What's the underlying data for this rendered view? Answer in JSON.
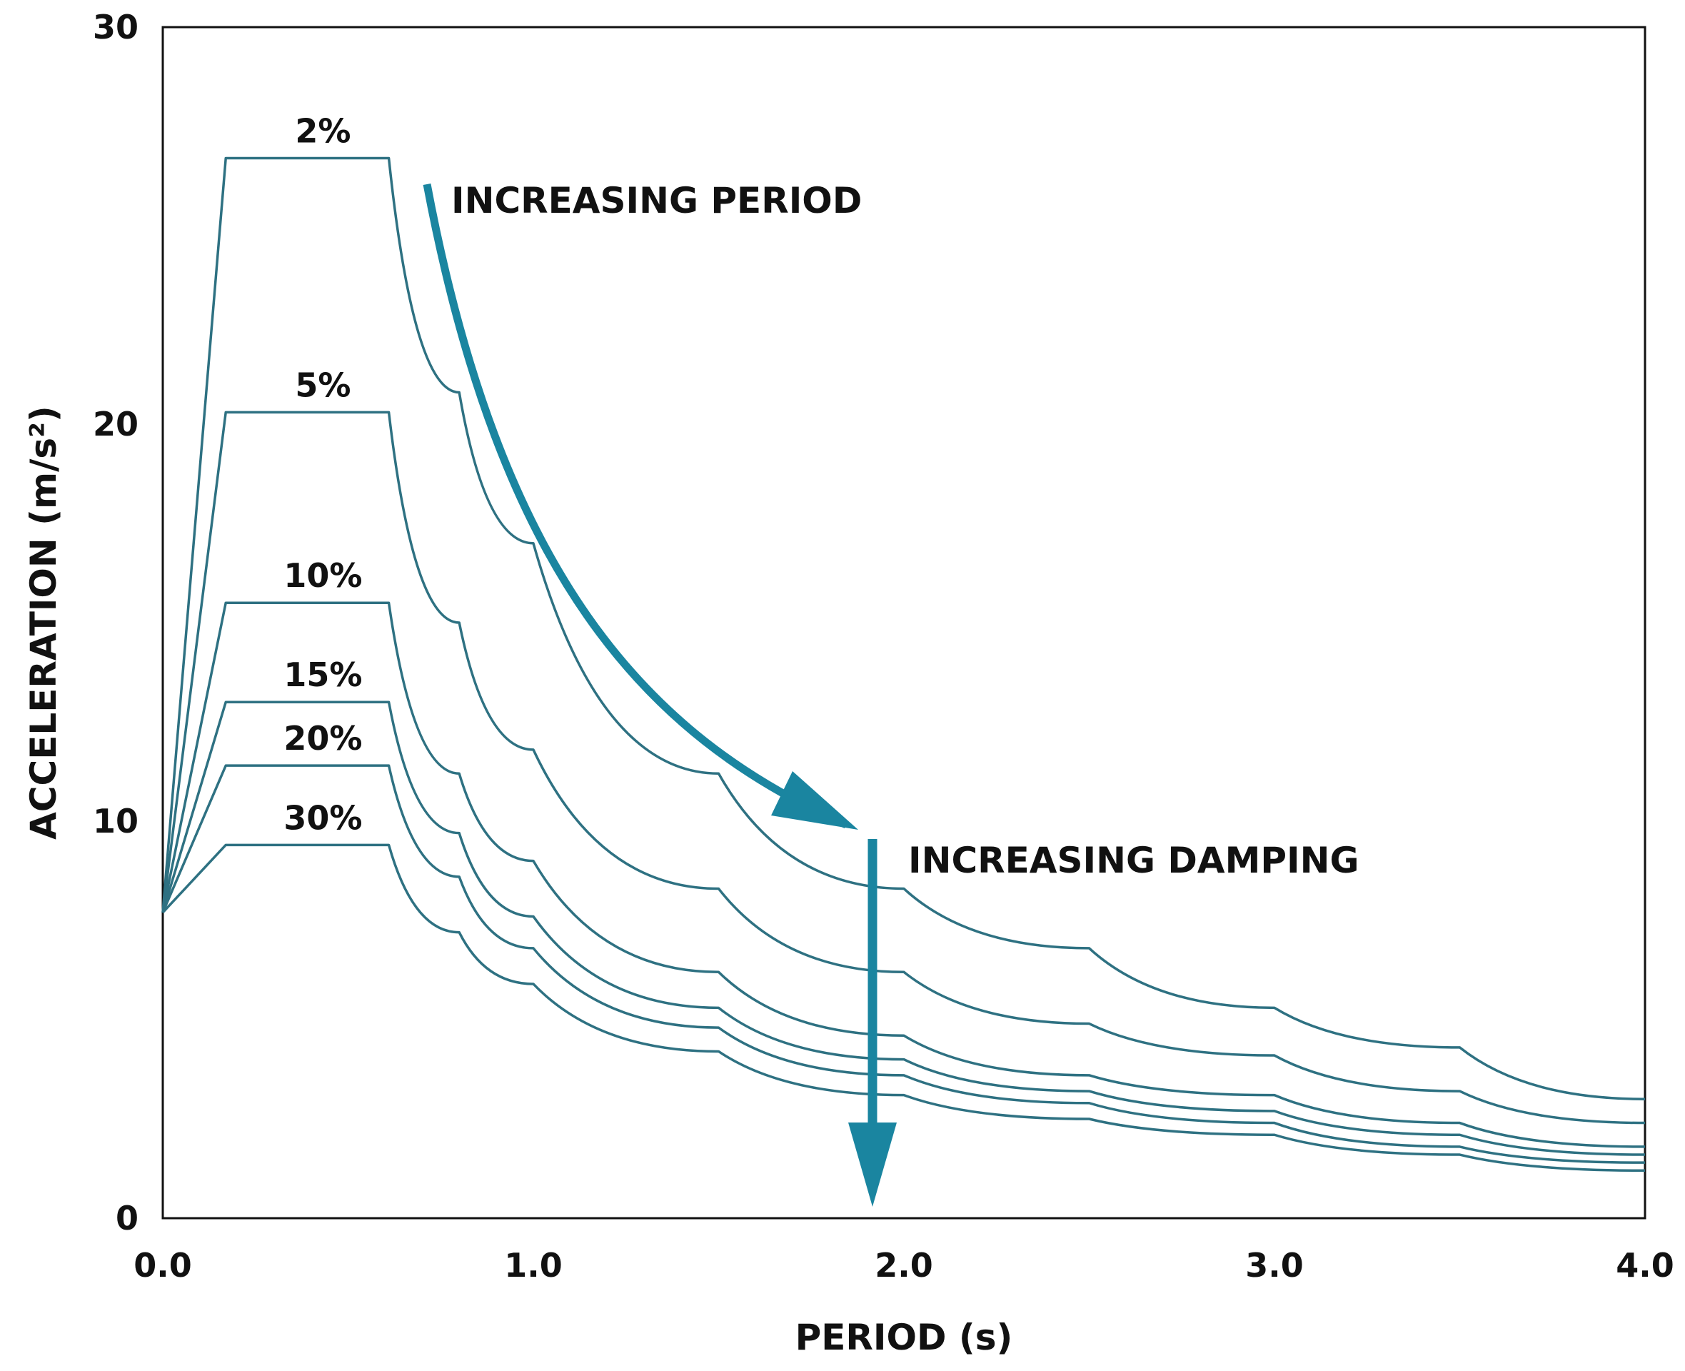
{
  "chart_data": {
    "type": "line",
    "title": "",
    "xlabel": "PERIOD (s)",
    "ylabel": "ACCELERATION (m/s²)",
    "xlim": [
      0,
      4
    ],
    "ylim": [
      0,
      30
    ],
    "x_ticks": [
      {
        "value": 0,
        "label": "0.0"
      },
      {
        "value": 1,
        "label": "1.0"
      },
      {
        "value": 2,
        "label": "2.0"
      },
      {
        "value": 3,
        "label": "3.0"
      },
      {
        "value": 4,
        "label": "4.0"
      }
    ],
    "y_ticks": [
      {
        "value": 0,
        "label": "0"
      },
      {
        "value": 10,
        "label": "10"
      },
      {
        "value": 20,
        "label": "20"
      },
      {
        "value": 30,
        "label": "30"
      }
    ],
    "grid": false,
    "legend": "inline labels above each curve plateau",
    "line_color": "#2e7182",
    "arrow_color": "#1a85a0",
    "series": [
      {
        "name": "2%",
        "x": [
          0,
          0.17,
          0.61,
          0.8,
          1.0,
          1.5,
          2.0,
          2.5,
          3.0,
          3.5,
          4.0
        ],
        "values": [
          7.7,
          26.7,
          26.7,
          20.8,
          17.0,
          11.2,
          8.3,
          6.8,
          5.3,
          4.3,
          3.0
        ]
      },
      {
        "name": "5%",
        "x": [
          0,
          0.17,
          0.61,
          0.8,
          1.0,
          1.5,
          2.0,
          2.5,
          3.0,
          3.5,
          4.0
        ],
        "values": [
          7.7,
          20.3,
          20.3,
          15.0,
          11.8,
          8.3,
          6.2,
          4.9,
          4.1,
          3.2,
          2.4
        ]
      },
      {
        "name": "10%",
        "x": [
          0,
          0.17,
          0.61,
          0.8,
          1.0,
          1.5,
          2.0,
          2.5,
          3.0,
          3.5,
          4.0
        ],
        "values": [
          7.7,
          15.5,
          15.5,
          11.2,
          9.0,
          6.2,
          4.6,
          3.6,
          3.1,
          2.4,
          1.8
        ]
      },
      {
        "name": "15%",
        "x": [
          0,
          0.17,
          0.61,
          0.8,
          1.0,
          1.5,
          2.0,
          2.5,
          3.0,
          3.5,
          4.0
        ],
        "values": [
          7.7,
          13.0,
          13.0,
          9.7,
          7.6,
          5.3,
          4.0,
          3.2,
          2.7,
          2.1,
          1.6
        ]
      },
      {
        "name": "20%",
        "x": [
          0,
          0.17,
          0.61,
          0.8,
          1.0,
          1.5,
          2.0,
          2.5,
          3.0,
          3.5,
          4.0
        ],
        "values": [
          7.7,
          11.4,
          11.4,
          8.6,
          6.8,
          4.8,
          3.6,
          2.9,
          2.4,
          1.8,
          1.4
        ]
      },
      {
        "name": "30%",
        "x": [
          0,
          0.17,
          0.61,
          0.8,
          1.0,
          1.5,
          2.0,
          2.5,
          3.0,
          3.5,
          4.0
        ],
        "values": [
          7.7,
          9.4,
          9.4,
          7.2,
          5.9,
          4.2,
          3.1,
          2.5,
          2.1,
          1.6,
          1.2
        ]
      }
    ],
    "annotations": [
      {
        "id": "increasing-period",
        "text": "INCREASING PERIOD"
      },
      {
        "id": "increasing-damping",
        "text": "INCREASING DAMPING"
      }
    ]
  }
}
